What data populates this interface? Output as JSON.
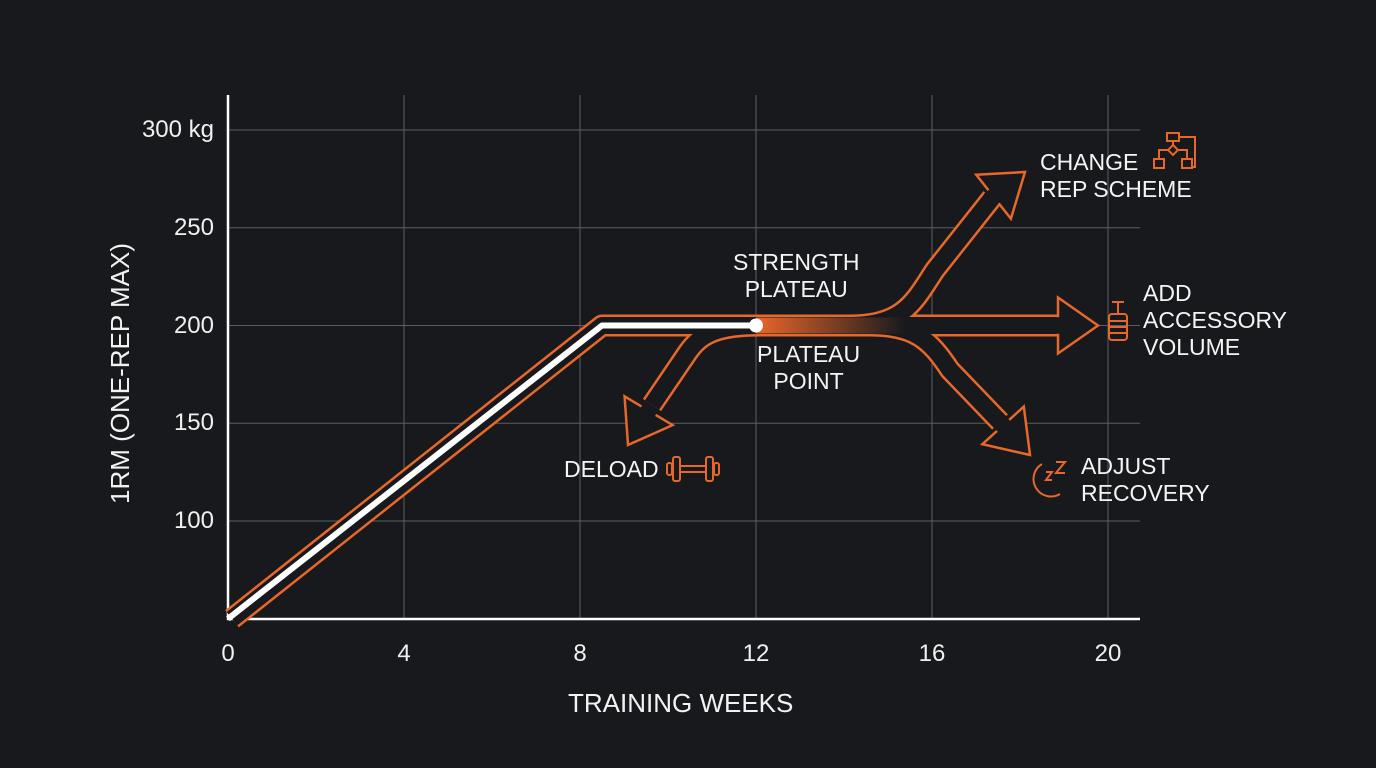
{
  "chart_data": {
    "type": "line",
    "title": "",
    "xlabel": "TRAINING WEEKS",
    "ylabel": "1RM (ONE-REP MAX)",
    "xlim": [
      0,
      20
    ],
    "ylim": [
      50,
      310
    ],
    "x_ticks": [
      "0",
      "4",
      "8",
      "12",
      "16",
      "20"
    ],
    "y_ticks": [
      "100",
      "150",
      "200",
      "250",
      "300 kg"
    ],
    "grid": true,
    "series": [
      {
        "x": [
          0,
          8.5,
          12
        ],
        "y": [
          50,
          200,
          200
        ],
        "color": "#ffffff"
      }
    ],
    "annotations": {
      "plateau_top": "STRENGTH\nPLATEAU",
      "plateau_point": "PLATEAU\nPOINT",
      "deload": "DELOAD",
      "change_rep": "CHANGE\nREP SCHEME",
      "add_accessory": "ADD\nACCESSORY\nVOLUME",
      "adjust_recovery": "ADJUST\nRECOVERY"
    },
    "icons": {
      "deload": "dumbbell-icon",
      "change_rep": "flowchart-icon",
      "add_accessory": "weight-stack-icon",
      "adjust_recovery": "moon-sleep-icon"
    },
    "colors": {
      "accent": "#e8672a",
      "line": "#ffffff",
      "background": "#17191d",
      "grid": "#5a5d63"
    }
  }
}
